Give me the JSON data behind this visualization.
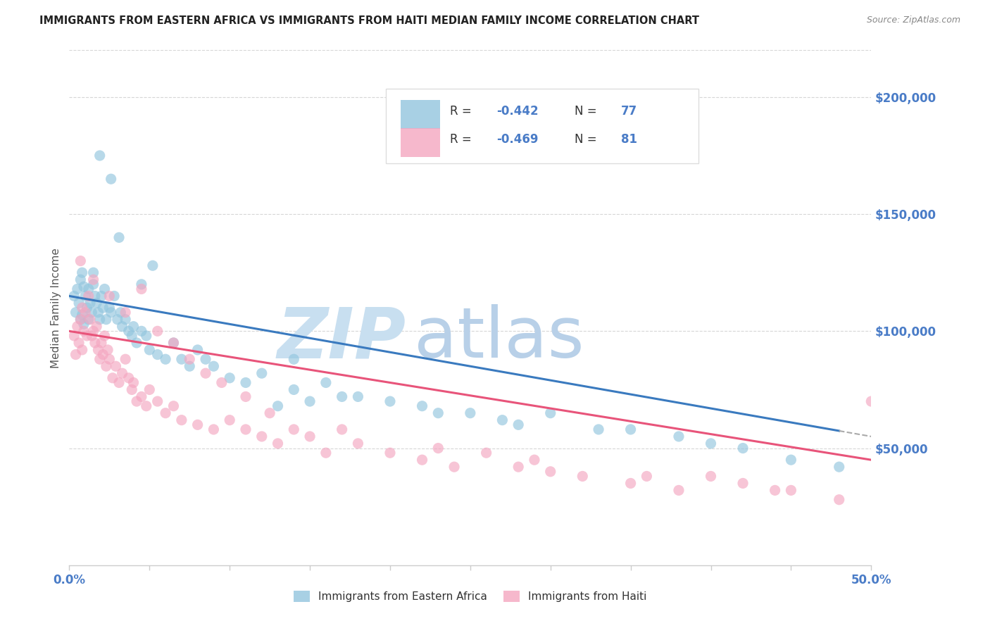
{
  "title": "IMMIGRANTS FROM EASTERN AFRICA VS IMMIGRANTS FROM HAITI MEDIAN FAMILY INCOME CORRELATION CHART",
  "source": "Source: ZipAtlas.com",
  "ylabel": "Median Family Income",
  "xlim": [
    0.0,
    0.5
  ],
  "ylim": [
    0,
    220000
  ],
  "yticks_right": [
    50000,
    100000,
    150000,
    200000
  ],
  "yticklabels_right": [
    "$50,000",
    "$100,000",
    "$150,000",
    "$200,000"
  ],
  "series1_label": "Immigrants from Eastern Africa",
  "series1_color": "#92c5de",
  "series1_R": "-0.442",
  "series1_N": "77",
  "series2_label": "Immigrants from Haiti",
  "series2_color": "#f4a6c0",
  "series2_R": "-0.469",
  "series2_N": "81",
  "blue_line_color": "#3a7abf",
  "pink_line_color": "#e8547a",
  "dash_color": "#aaaaaa",
  "watermark_zip_color": "#c8dff0",
  "watermark_atlas_color": "#b8d0e8",
  "background_color": "#ffffff",
  "grid_color": "#cccccc",
  "title_color": "#222222",
  "right_axis_color": "#4a7cc7",
  "legend_text_color": "#333333",
  "legend_R_color": "#4a7cc7",
  "legend_N_color": "#4a7cc7",
  "eastern_africa_x": [
    0.003,
    0.004,
    0.005,
    0.006,
    0.007,
    0.007,
    0.008,
    0.008,
    0.009,
    0.009,
    0.01,
    0.011,
    0.012,
    0.012,
    0.013,
    0.014,
    0.015,
    0.015,
    0.016,
    0.017,
    0.018,
    0.019,
    0.02,
    0.021,
    0.022,
    0.023,
    0.025,
    0.026,
    0.028,
    0.03,
    0.032,
    0.033,
    0.035,
    0.037,
    0.039,
    0.04,
    0.042,
    0.045,
    0.048,
    0.05,
    0.055,
    0.06,
    0.065,
    0.07,
    0.075,
    0.08,
    0.085,
    0.09,
    0.1,
    0.11,
    0.12,
    0.14,
    0.15,
    0.16,
    0.18,
    0.2,
    0.22,
    0.25,
    0.28,
    0.3,
    0.35,
    0.38,
    0.42,
    0.45,
    0.48,
    0.13,
    0.17,
    0.23,
    0.27,
    0.33,
    0.4,
    0.045,
    0.019,
    0.026,
    0.031,
    0.052,
    0.14
  ],
  "eastern_africa_y": [
    115000,
    108000,
    118000,
    112000,
    122000,
    105000,
    125000,
    107000,
    119000,
    103000,
    115000,
    110000,
    118000,
    105000,
    112000,
    108000,
    125000,
    120000,
    115000,
    112000,
    108000,
    105000,
    115000,
    110000,
    118000,
    105000,
    110000,
    108000,
    115000,
    105000,
    108000,
    102000,
    105000,
    100000,
    98000,
    102000,
    95000,
    100000,
    98000,
    92000,
    90000,
    88000,
    95000,
    88000,
    85000,
    92000,
    88000,
    85000,
    80000,
    78000,
    82000,
    75000,
    70000,
    78000,
    72000,
    70000,
    68000,
    65000,
    60000,
    65000,
    58000,
    55000,
    50000,
    45000,
    42000,
    68000,
    72000,
    65000,
    62000,
    58000,
    52000,
    120000,
    175000,
    165000,
    140000,
    128000,
    88000
  ],
  "haiti_x": [
    0.003,
    0.004,
    0.005,
    0.006,
    0.007,
    0.008,
    0.008,
    0.009,
    0.01,
    0.011,
    0.012,
    0.013,
    0.014,
    0.015,
    0.016,
    0.017,
    0.018,
    0.019,
    0.02,
    0.021,
    0.022,
    0.023,
    0.024,
    0.025,
    0.027,
    0.029,
    0.031,
    0.033,
    0.035,
    0.037,
    0.039,
    0.04,
    0.042,
    0.045,
    0.048,
    0.05,
    0.055,
    0.06,
    0.065,
    0.07,
    0.08,
    0.09,
    0.1,
    0.11,
    0.12,
    0.13,
    0.14,
    0.15,
    0.16,
    0.18,
    0.2,
    0.22,
    0.24,
    0.26,
    0.28,
    0.3,
    0.32,
    0.35,
    0.38,
    0.4,
    0.42,
    0.45,
    0.48,
    0.007,
    0.015,
    0.025,
    0.035,
    0.045,
    0.055,
    0.065,
    0.075,
    0.085,
    0.095,
    0.11,
    0.125,
    0.17,
    0.23,
    0.29,
    0.36,
    0.44,
    0.5
  ],
  "haiti_y": [
    98000,
    90000,
    102000,
    95000,
    105000,
    110000,
    92000,
    100000,
    108000,
    98000,
    115000,
    105000,
    98000,
    100000,
    95000,
    102000,
    92000,
    88000,
    95000,
    90000,
    98000,
    85000,
    92000,
    88000,
    80000,
    85000,
    78000,
    82000,
    88000,
    80000,
    75000,
    78000,
    70000,
    72000,
    68000,
    75000,
    70000,
    65000,
    68000,
    62000,
    60000,
    58000,
    62000,
    58000,
    55000,
    52000,
    58000,
    55000,
    48000,
    52000,
    48000,
    45000,
    42000,
    48000,
    42000,
    40000,
    38000,
    35000,
    32000,
    38000,
    35000,
    32000,
    28000,
    130000,
    122000,
    115000,
    108000,
    118000,
    100000,
    95000,
    88000,
    82000,
    78000,
    72000,
    65000,
    58000,
    50000,
    45000,
    38000,
    32000,
    70000
  ]
}
